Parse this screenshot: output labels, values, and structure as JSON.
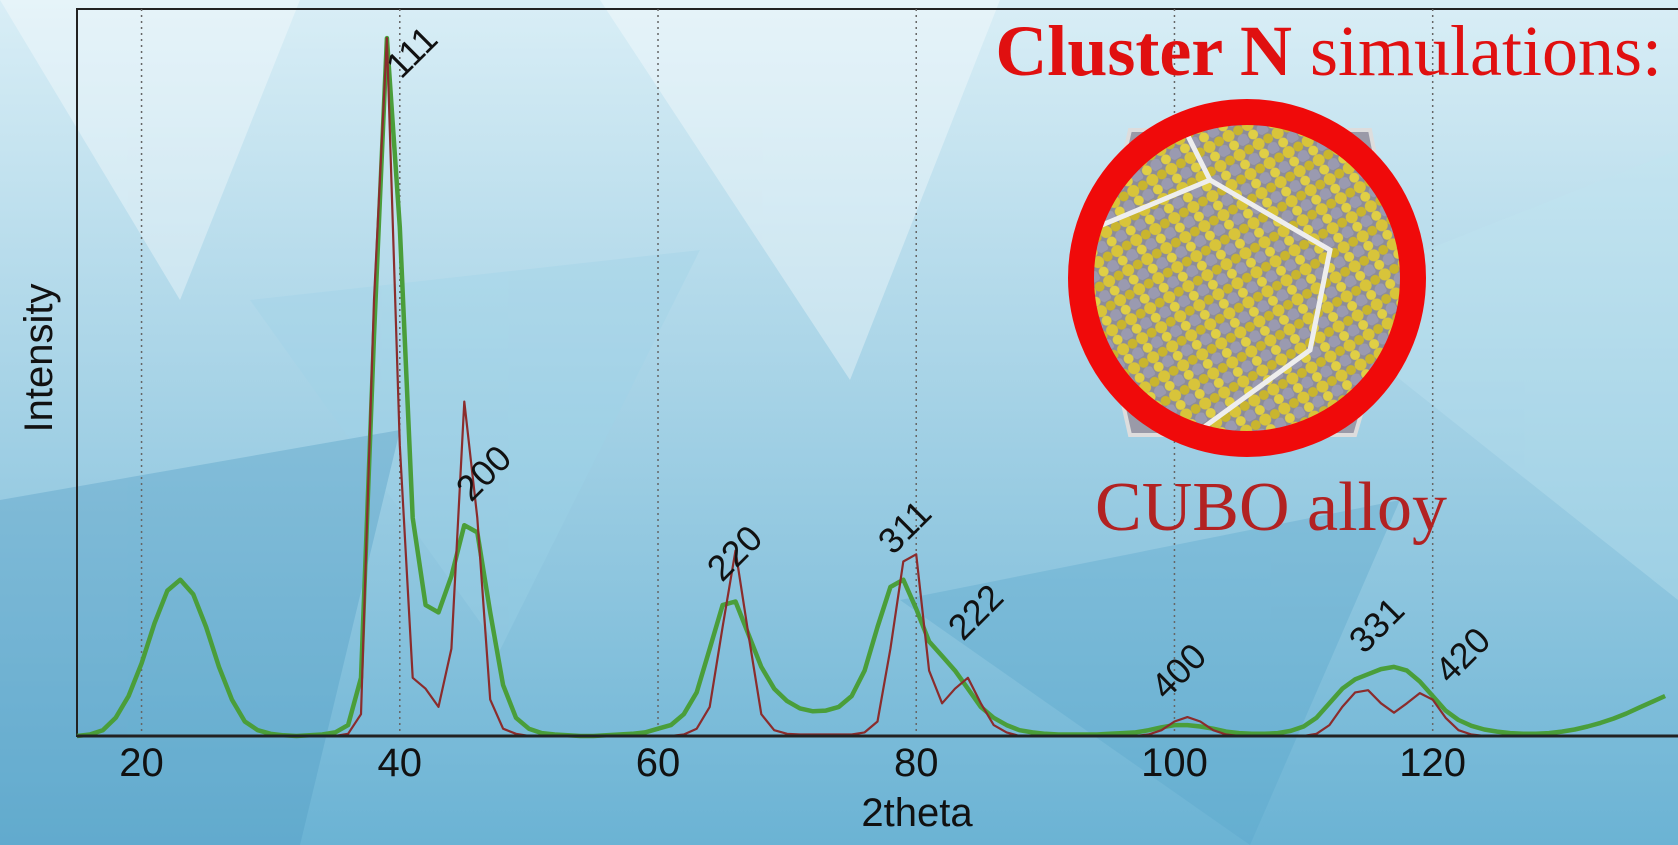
{
  "chart_data": {
    "type": "line",
    "title_bold": "Cluster N",
    "title_rest": "simulations:",
    "inset_caption": "CUBO alloy",
    "x_label": "2theta",
    "y_label": "Intensity",
    "xlim": [
      15,
      139
    ],
    "ylim": [
      0,
      100
    ],
    "xticks": [
      20,
      40,
      60,
      80,
      100,
      120
    ],
    "grid": true,
    "peak_labels": [
      "111",
      "200",
      "220",
      "311",
      "222",
      "400",
      "331",
      "420"
    ],
    "x": [
      15,
      16,
      17,
      18,
      19,
      20,
      21,
      22,
      23,
      24,
      25,
      26,
      27,
      28,
      29,
      30,
      31,
      32,
      33,
      34,
      35,
      36,
      37,
      38,
      39,
      40,
      41,
      42,
      43,
      44,
      45,
      46,
      47,
      48,
      49,
      50,
      51,
      52,
      53,
      54,
      55,
      56,
      57,
      58,
      59,
      60,
      61,
      62,
      63,
      64,
      65,
      66,
      67,
      68,
      69,
      70,
      71,
      72,
      73,
      74,
      75,
      76,
      77,
      78,
      79,
      80,
      81,
      82,
      83,
      84,
      85,
      86,
      87,
      88,
      89,
      90,
      91,
      92,
      93,
      94,
      95,
      96,
      97,
      98,
      99,
      100,
      101,
      102,
      103,
      104,
      105,
      106,
      107,
      108,
      109,
      110,
      111,
      112,
      113,
      114,
      115,
      116,
      117,
      118,
      119,
      120,
      121,
      122,
      123,
      124,
      125,
      126,
      127,
      128,
      129,
      130,
      131,
      132,
      133,
      134,
      135,
      136,
      137,
      138
    ],
    "series": [
      {
        "color": "#4a9e3a",
        "values": [
          0,
          0.2,
          0.8,
          2.5,
          5.5,
          10,
          15.5,
          20,
          21.5,
          19.5,
          15,
          9.5,
          5,
          2,
          0.8,
          0.3,
          0.1,
          0,
          0.1,
          0.2,
          0.5,
          1.5,
          8,
          55,
          96,
          70,
          30,
          18,
          17,
          22,
          29,
          28,
          17,
          7,
          2.5,
          1,
          0.4,
          0.2,
          0.1,
          0,
          0,
          0.1,
          0.2,
          0.3,
          0.5,
          1,
          1.5,
          3,
          6,
          12,
          18,
          18.5,
          14,
          9.5,
          6.5,
          4.8,
          3.8,
          3.4,
          3.5,
          4,
          5.5,
          9,
          15,
          20.5,
          21.5,
          17.5,
          13,
          11,
          9,
          6.5,
          4,
          2.5,
          1.5,
          0.8,
          0.5,
          0.3,
          0.2,
          0.2,
          0.2,
          0.2,
          0.3,
          0.4,
          0.5,
          0.8,
          1.2,
          1.5,
          1.5,
          1.3,
          1,
          0.6,
          0.4,
          0.3,
          0.3,
          0.4,
          0.7,
          1.3,
          2.5,
          4.5,
          6.5,
          7.8,
          8.5,
          9.2,
          9.5,
          9,
          7.5,
          5.5,
          3.5,
          2.2,
          1.4,
          0.9,
          0.6,
          0.4,
          0.3,
          0.3,
          0.4,
          0.6,
          0.9,
          1.3,
          1.8,
          2.4,
          3.1,
          3.9,
          4.7,
          5.5
        ]
      },
      {
        "color": "#8b2c2c",
        "values": [
          0,
          0,
          0,
          0,
          0,
          0,
          0,
          0,
          0,
          0,
          0,
          0,
          0,
          0,
          0,
          0,
          0,
          0,
          0,
          0,
          0,
          0.3,
          3,
          60,
          96,
          40,
          8,
          6.5,
          4,
          12,
          46,
          30,
          5,
          1,
          0.3,
          0,
          0,
          0,
          0,
          0,
          0,
          0,
          0,
          0,
          0,
          0,
          0,
          0.2,
          1,
          4,
          15,
          25.5,
          14,
          3,
          0.8,
          0.3,
          0.2,
          0.2,
          0.2,
          0.2,
          0.2,
          0.5,
          2,
          12,
          24,
          25,
          9,
          4.5,
          6.5,
          8,
          4.5,
          1.5,
          0.5,
          0,
          0,
          0,
          0,
          0,
          0,
          0,
          0,
          0,
          0,
          0.2,
          0.8,
          2,
          2.6,
          2,
          0.8,
          0.2,
          0,
          0,
          0,
          0,
          0,
          0,
          0.3,
          1.5,
          4,
          6,
          6.3,
          4.5,
          3.2,
          4.5,
          5.9,
          5,
          2.5,
          0.8,
          0.2,
          0,
          0,
          0,
          0,
          0,
          0,
          0,
          0,
          0,
          0,
          0,
          0,
          0,
          0,
          0
        ]
      }
    ]
  }
}
